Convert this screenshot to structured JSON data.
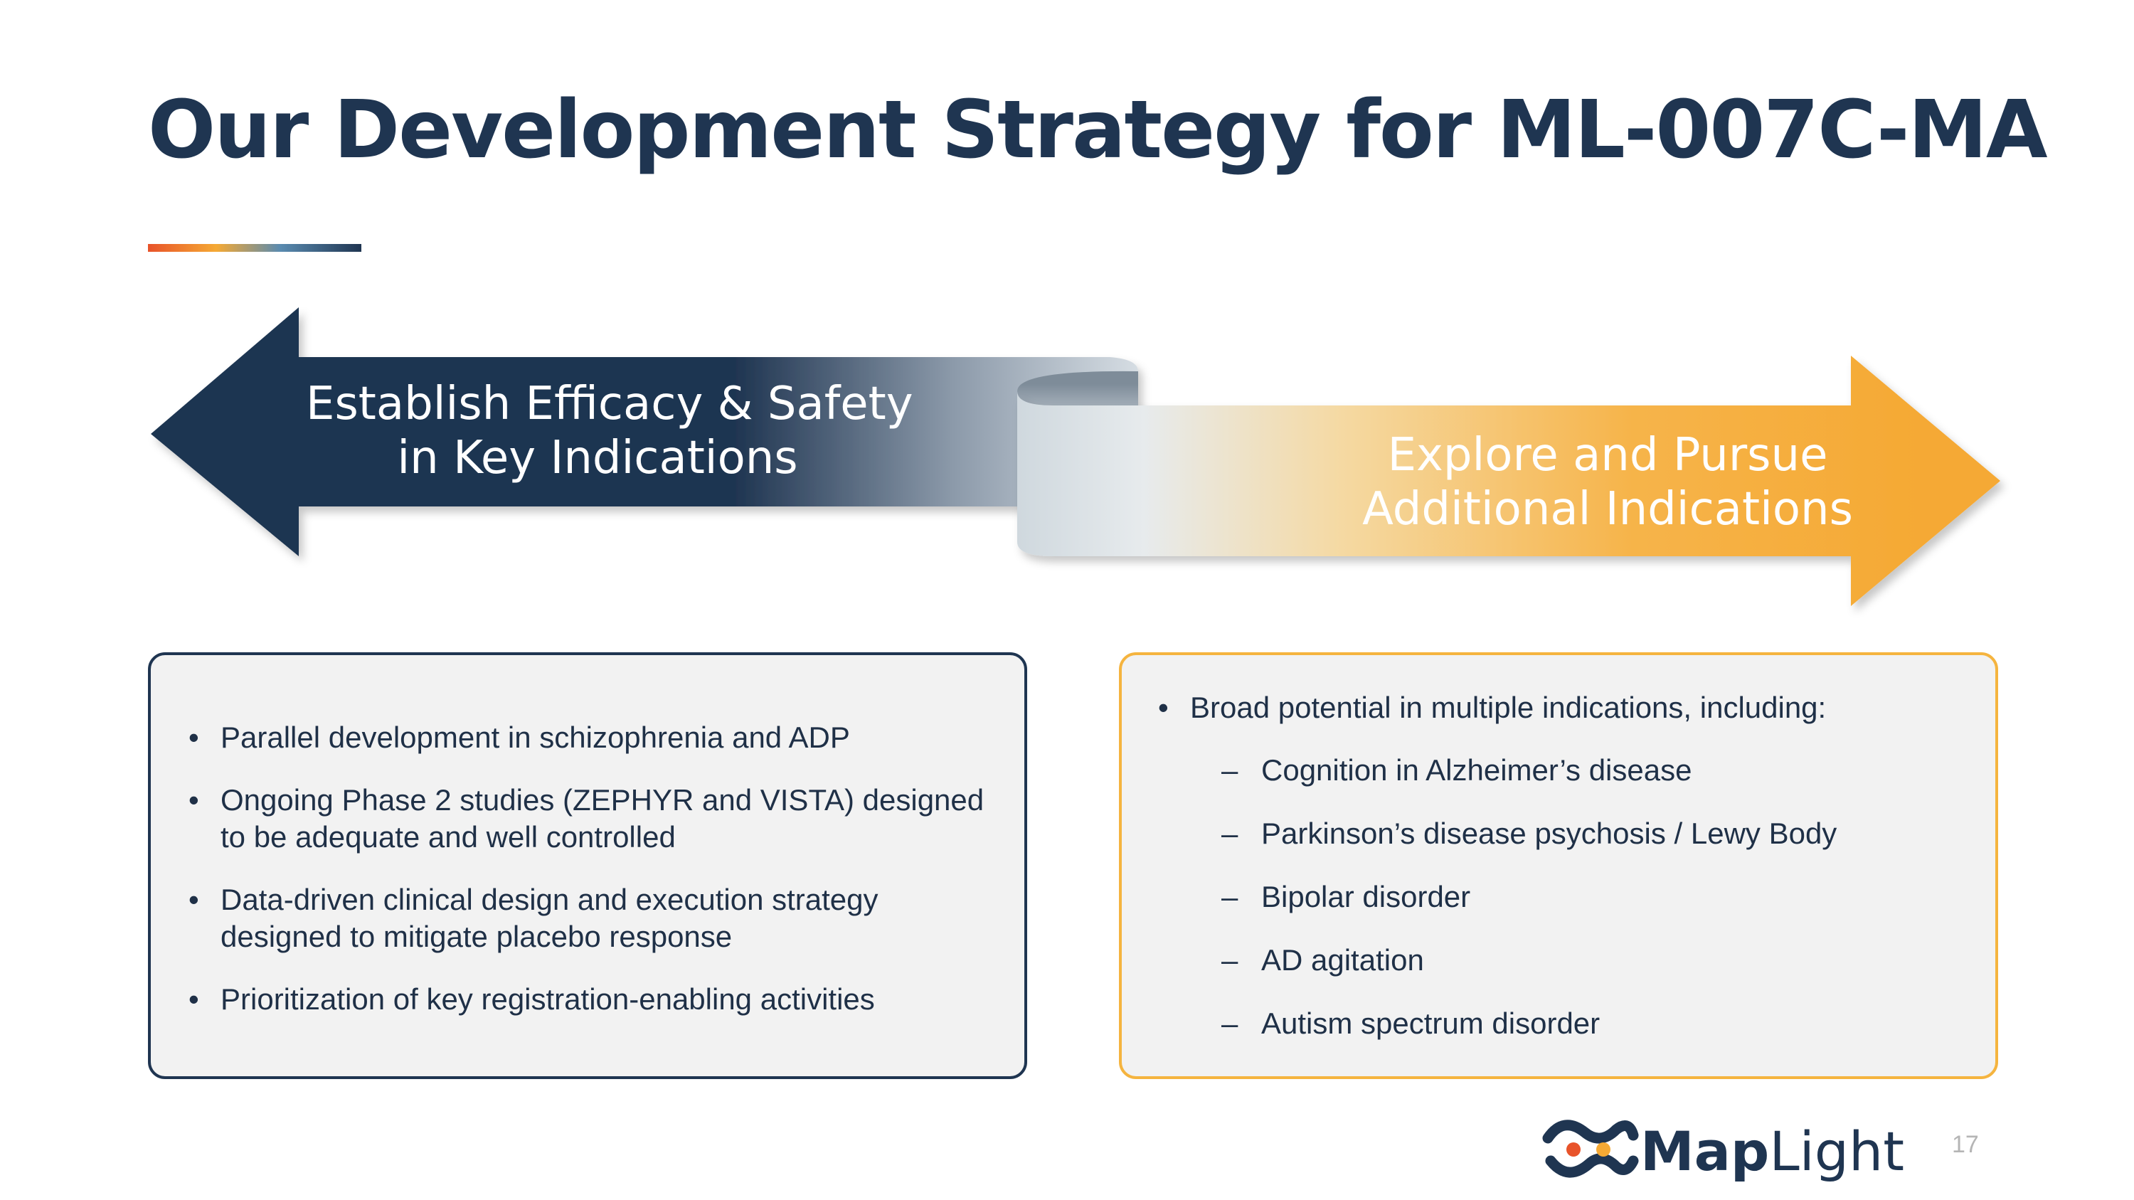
{
  "slide": {
    "title": "Our Development Strategy for ML-007C-MA",
    "page_number": "17"
  },
  "arrows": {
    "left": {
      "line1": "Establish Efficacy & Safety",
      "line2": "in Key Indications"
    },
    "right": {
      "line1": "Explore and Pursue",
      "line2": "Additional Indications"
    }
  },
  "left_box": {
    "bullets": [
      "Parallel development in schizophrenia and ADP",
      "Ongoing Phase 2 studies (ZEPHYR and VISTA) designed to be adequate and well controlled",
      "Data-driven clinical design and execution strategy designed to mitigate placebo response",
      "Prioritization of key registration-enabling activities"
    ]
  },
  "right_box": {
    "intro": "Broad potential in multiple indications, including:",
    "items": [
      "Cognition in Alzheimer’s disease",
      "Parkinson’s disease psychosis / Lewy Body",
      "Bipolar disorder",
      "AD agitation",
      "Autism spectrum disorder"
    ]
  },
  "logo": {
    "text_bold": "Map",
    "text_light": "Light"
  },
  "colors": {
    "navy": "#1f3551",
    "orange": "#f5a934",
    "box_fill": "#f2f2f2"
  }
}
